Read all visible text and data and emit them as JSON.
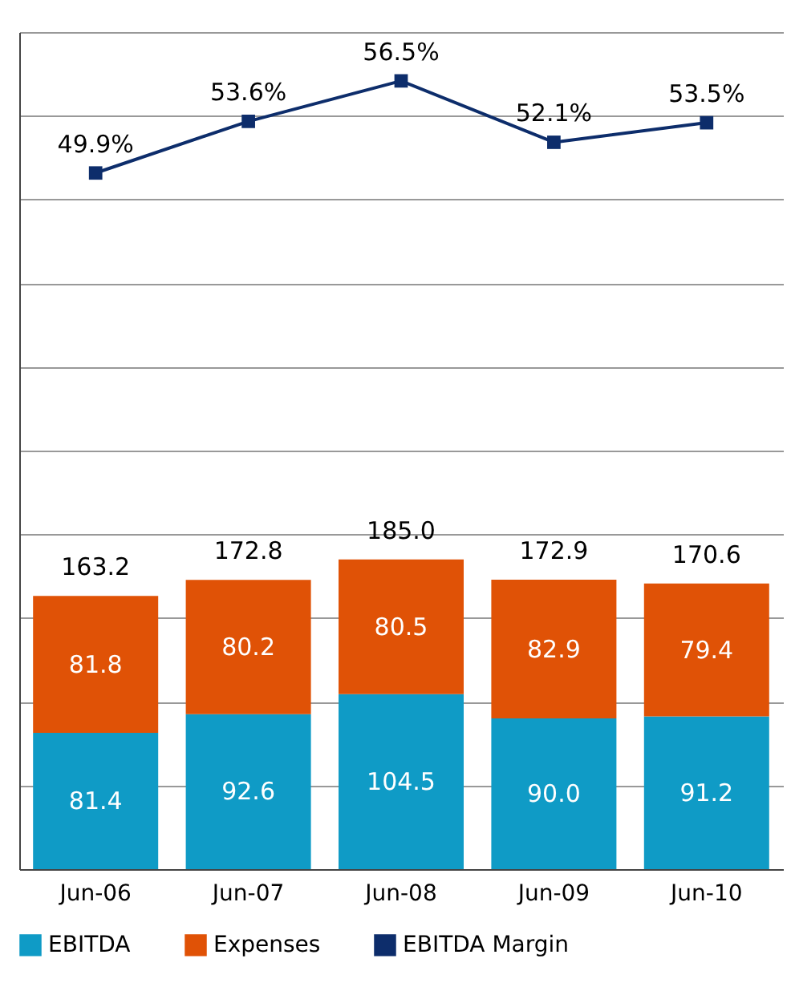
{
  "chart_data": {
    "type": "bar",
    "stacked": true,
    "categories": [
      "Jun-06",
      "Jun-07",
      "Jun-08",
      "Jun-09",
      "Jun-10"
    ],
    "series": [
      {
        "name": "EBITDA",
        "color": "#0f9bc6",
        "values": [
          81.4,
          92.6,
          104.5,
          90.0,
          91.2
        ],
        "value_labels": [
          "81.4",
          "92.6",
          "104.5",
          "90.0",
          "91.2"
        ]
      },
      {
        "name": "Expenses",
        "color": "#e05206",
        "values": [
          81.8,
          80.2,
          80.5,
          82.9,
          79.4
        ],
        "value_labels": [
          "81.8",
          "80.2",
          "80.5",
          "82.9",
          "79.4"
        ]
      },
      {
        "name": "EBITDA Margin",
        "type": "line",
        "axis": "y2",
        "color": "#0d2d6b",
        "marker": "square",
        "values": [
          49.9,
          53.6,
          56.5,
          52.1,
          53.5
        ],
        "value_labels": [
          "49.9%",
          "53.6%",
          "56.5%",
          "52.1%",
          "53.5%"
        ]
      }
    ],
    "totals": [
      "163.2",
      "172.8",
      "185.0",
      "172.9",
      "170.6"
    ],
    "ylim": [
      0,
      500
    ],
    "yticks": [
      {
        "value": 0,
        "label": null
      },
      {
        "value": 50,
        "label": null
      },
      {
        "value": 100,
        "label": null
      },
      {
        "value": 150,
        "label": null
      },
      {
        "value": 200,
        "label": null
      },
      {
        "value": 250,
        "label": null
      },
      {
        "value": 300,
        "label": null
      },
      {
        "value": 350,
        "label": null
      },
      {
        "value": 400,
        "label": null
      },
      {
        "value": 450,
        "label": null
      },
      {
        "value": 500,
        "label": null
      }
    ],
    "y2lim": [
      0,
      60
    ],
    "tick_labels": "x",
    "grid": "y",
    "legend": "bottom"
  }
}
